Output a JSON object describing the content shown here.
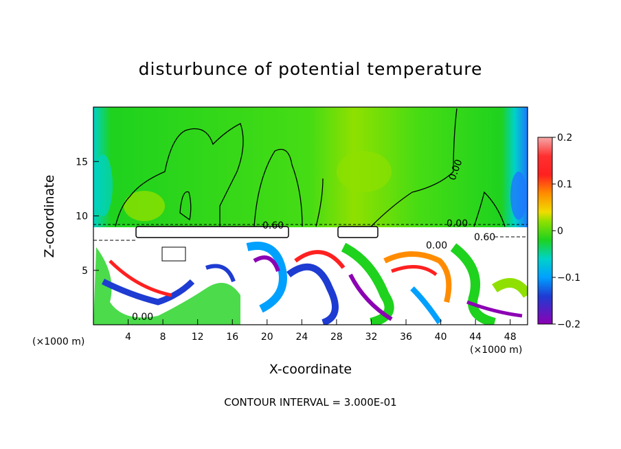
{
  "chart_data": {
    "type": "heatmap",
    "title": "disturbunce of potential temperature",
    "xlabel": "X-coordinate",
    "ylabel": "Z-coordinate",
    "x_unit": "(×1000 m)",
    "y_unit": "(×1000 m)",
    "x_ticks": [
      4,
      8,
      12,
      16,
      20,
      24,
      28,
      32,
      36,
      40,
      44,
      48
    ],
    "y_ticks": [
      5,
      10,
      15
    ],
    "xlim": [
      0,
      50
    ],
    "ylim": [
      0,
      20
    ],
    "colorbar": {
      "ticks": [
        0.2,
        0.1,
        0,
        -0.1,
        -0.2
      ],
      "tick_labels": [
        "0.2",
        "0.1",
        "0",
        "−0.1",
        "−0.2"
      ],
      "range": [
        -0.2,
        0.2
      ],
      "colors": [
        "#f5a8a8",
        "#ff2020",
        "#ff8c00",
        "#f0dc00",
        "#8fe000",
        "#1ed21e",
        "#00d2c8",
        "#00a0ff",
        "#1e3cd2",
        "#8c00b4"
      ]
    },
    "contour_labels": [
      "0.00",
      "0.60",
      "0.00",
      "0.00",
      "0.60",
      "0.00"
    ],
    "footnote": "CONTOUR INTERVAL = 3.000E-01"
  }
}
